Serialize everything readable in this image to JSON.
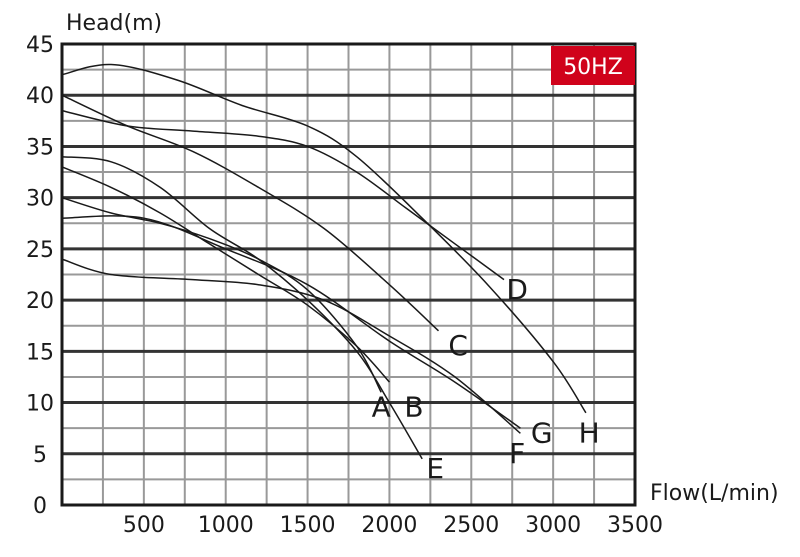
{
  "chart_data": {
    "type": "line",
    "title": "",
    "ylabel": "Head(m)",
    "xlabel": "Flow(L/min)",
    "badge": "50HZ",
    "badge_color": "#d0021b",
    "xlim": [
      0,
      3500
    ],
    "ylim": [
      0,
      45
    ],
    "x_ticks": [
      500,
      1000,
      1500,
      2000,
      2500,
      3000,
      3500
    ],
    "y_ticks": [
      0,
      5,
      10,
      15,
      20,
      25,
      30,
      35,
      40,
      45
    ],
    "x_tick_labels": [
      "500",
      "1000",
      "1500",
      "2000",
      "2500",
      "3000",
      "3500"
    ],
    "y_tick_labels": [
      "0",
      "5",
      "10",
      "15",
      "20",
      "25",
      "30",
      "35",
      "40",
      "45"
    ],
    "grid": true,
    "line_color": "#1a1a1a",
    "series": [
      {
        "name": "A",
        "points": [
          [
            0,
            30
          ],
          [
            300,
            28.5
          ],
          [
            600,
            27.5
          ],
          [
            900,
            26
          ],
          [
            1200,
            24
          ],
          [
            1500,
            21
          ],
          [
            1800,
            15.5
          ],
          [
            1950,
            11
          ]
        ]
      },
      {
        "name": "B",
        "points": [
          [
            0,
            33
          ],
          [
            300,
            31
          ],
          [
            600,
            28.5
          ],
          [
            900,
            25.5
          ],
          [
            1200,
            22.5
          ],
          [
            1500,
            19.5
          ],
          [
            1800,
            15.5
          ],
          [
            2000,
            12
          ]
        ]
      },
      {
        "name": "C",
        "points": [
          [
            0,
            40
          ],
          [
            400,
            37
          ],
          [
            800,
            34.5
          ],
          [
            1200,
            31
          ],
          [
            1600,
            27
          ],
          [
            2000,
            21.5
          ],
          [
            2300,
            17
          ]
        ]
      },
      {
        "name": "D",
        "points": [
          [
            0,
            38.5
          ],
          [
            400,
            37
          ],
          [
            800,
            36.5
          ],
          [
            1200,
            36
          ],
          [
            1500,
            35
          ],
          [
            1800,
            32.5
          ],
          [
            2100,
            29
          ],
          [
            2400,
            25.5
          ],
          [
            2700,
            22
          ]
        ]
      },
      {
        "name": "E",
        "points": [
          [
            0,
            34
          ],
          [
            300,
            33.5
          ],
          [
            600,
            31
          ],
          [
            900,
            27
          ],
          [
            1200,
            24
          ],
          [
            1500,
            20
          ],
          [
            1800,
            15
          ],
          [
            2000,
            10
          ],
          [
            2200,
            4.5
          ]
        ]
      },
      {
        "name": "F",
        "points": [
          [
            0,
            28
          ],
          [
            500,
            28
          ],
          [
            1000,
            25
          ],
          [
            1500,
            21.5
          ],
          [
            2000,
            16
          ],
          [
            2400,
            12
          ],
          [
            2800,
            7.5
          ]
        ]
      },
      {
        "name": "G",
        "points": [
          [
            0,
            24
          ],
          [
            300,
            22.5
          ],
          [
            800,
            22
          ],
          [
            1200,
            21.5
          ],
          [
            1600,
            20
          ],
          [
            2000,
            16.5
          ],
          [
            2400,
            12.5
          ],
          [
            2800,
            7
          ]
        ]
      },
      {
        "name": "H",
        "points": [
          [
            0,
            42
          ],
          [
            300,
            43
          ],
          [
            700,
            41.5
          ],
          [
            1100,
            39
          ],
          [
            1500,
            37
          ],
          [
            1800,
            34
          ],
          [
            2200,
            28
          ],
          [
            2600,
            21.5
          ],
          [
            3000,
            14
          ],
          [
            3200,
            9
          ]
        ]
      }
    ],
    "label_positions": [
      {
        "name": "A",
        "x": 1950,
        "y": 9.5
      },
      {
        "name": "B",
        "x": 2150,
        "y": 9.5
      },
      {
        "name": "C",
        "x": 2420,
        "y": 15.5
      },
      {
        "name": "D",
        "x": 2780,
        "y": 21
      },
      {
        "name": "E",
        "x": 2280,
        "y": 3.5
      },
      {
        "name": "F",
        "x": 2780,
        "y": 5
      },
      {
        "name": "G",
        "x": 2930,
        "y": 7
      },
      {
        "name": "H",
        "x": 3220,
        "y": 7
      }
    ]
  }
}
